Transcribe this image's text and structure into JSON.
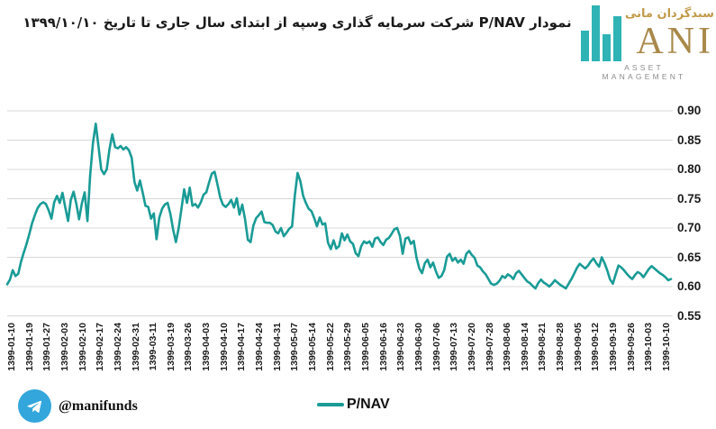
{
  "title": "نمودار P/NAV شرکت سرمایه گذاری وسپه از ابتدای سال جاری تا تاریخ ۱۳۹۹/۱۰/۱۰",
  "logo": {
    "persian_name": "سبدگردان مانی",
    "latin_name": "ANI",
    "subtitle": "ASSET MANAGEMENT"
  },
  "footer": {
    "telegram_handle": "@manifunds"
  },
  "legend": {
    "label": "P/NAV"
  },
  "colors": {
    "line": "#1a9b96",
    "grid": "#d8d8d8",
    "logo_teal": "#2fb3b5",
    "logo_gold": "#a9894a",
    "telegram_blue": "#33a6dc",
    "text": "#1a1a1a"
  },
  "chart_data": {
    "type": "line",
    "title": "P/NAV of Vasapeh investment company from start of current year to 1399/10/10",
    "series_name": "P/NAV",
    "ylim": [
      0.55,
      0.9
    ],
    "y_ticks": [
      "0.90",
      "0.85",
      "0.80",
      "0.75",
      "0.70",
      "0.65",
      "0.60",
      "0.55"
    ],
    "grid": true,
    "legend_position": "bottom",
    "categories": [
      "1399-01-10",
      "1399-01-19",
      "1399-01-27",
      "1399-02-03",
      "1399-02-10",
      "1399-02-17",
      "1399-02-24",
      "1399-02-31",
      "1399-03-11",
      "1399-03-19",
      "1399-03-26",
      "1399-04-03",
      "1399-04-10",
      "1399-04-17",
      "1399-04-24",
      "1399-04-31",
      "1399-05-07",
      "1399-05-14",
      "1399-05-22",
      "1399-05-29",
      "1399-06-05",
      "1399-06-16",
      "1399-06-23",
      "1399-06-30",
      "1399-07-06",
      "1399-07-13",
      "1399-07-20",
      "1399-07-28",
      "1399-08-06",
      "1399-08-14",
      "1399-08-21",
      "1399-08-28",
      "1399-09-05",
      "1399-09-12",
      "1399-09-19",
      "1399-09-26",
      "1399-10-03",
      "1399-10-10"
    ],
    "values": [
      0.604,
      0.612,
      0.628,
      0.618,
      0.622,
      0.643,
      0.658,
      0.673,
      0.69,
      0.708,
      0.722,
      0.734,
      0.741,
      0.744,
      0.741,
      0.73,
      0.716,
      0.744,
      0.755,
      0.743,
      0.76,
      0.735,
      0.712,
      0.748,
      0.762,
      0.741,
      0.715,
      0.742,
      0.761,
      0.712,
      0.79,
      0.845,
      0.878,
      0.84,
      0.8,
      0.792,
      0.8,
      0.835,
      0.86,
      0.838,
      0.836,
      0.84,
      0.834,
      0.838,
      0.833,
      0.82,
      0.779,
      0.764,
      0.781,
      0.76,
      0.738,
      0.736,
      0.716,
      0.725,
      0.681,
      0.718,
      0.733,
      0.74,
      0.743,
      0.724,
      0.697,
      0.676,
      0.7,
      0.733,
      0.766,
      0.743,
      0.769,
      0.738,
      0.741,
      0.735,
      0.744,
      0.757,
      0.761,
      0.778,
      0.793,
      0.796,
      0.775,
      0.752,
      0.74,
      0.736,
      0.741,
      0.748,
      0.735,
      0.751,
      0.723,
      0.74,
      0.715,
      0.68,
      0.676,
      0.704,
      0.717,
      0.722,
      0.728,
      0.71,
      0.709,
      0.709,
      0.705,
      0.694,
      0.691,
      0.7,
      0.686,
      0.692,
      0.699,
      0.703,
      0.756,
      0.794,
      0.78,
      0.755,
      0.743,
      0.733,
      0.729,
      0.717,
      0.703,
      0.718,
      0.706,
      0.708,
      0.675,
      0.664,
      0.679,
      0.665,
      0.669,
      0.691,
      0.679,
      0.689,
      0.677,
      0.673,
      0.657,
      0.652,
      0.669,
      0.677,
      0.674,
      0.677,
      0.668,
      0.682,
      0.684,
      0.676,
      0.671,
      0.68,
      0.683,
      0.69,
      0.698,
      0.7,
      0.686,
      0.656,
      0.682,
      0.684,
      0.673,
      0.678,
      0.649,
      0.631,
      0.623,
      0.64,
      0.646,
      0.633,
      0.641,
      0.626,
      0.615,
      0.618,
      0.628,
      0.651,
      0.656,
      0.644,
      0.649,
      0.641,
      0.646,
      0.639,
      0.656,
      0.661,
      0.654,
      0.649,
      0.636,
      0.633,
      0.626,
      0.621,
      0.613,
      0.605,
      0.603,
      0.605,
      0.61,
      0.618,
      0.615,
      0.621,
      0.618,
      0.613,
      0.623,
      0.627,
      0.621,
      0.615,
      0.609,
      0.606,
      0.601,
      0.597,
      0.606,
      0.612,
      0.607,
      0.604,
      0.6,
      0.605,
      0.611,
      0.607,
      0.603,
      0.6,
      0.597,
      0.605,
      0.613,
      0.622,
      0.632,
      0.639,
      0.635,
      0.631,
      0.636,
      0.643,
      0.648,
      0.64,
      0.634,
      0.65,
      0.64,
      0.627,
      0.612,
      0.605,
      0.621,
      0.636,
      0.633,
      0.628,
      0.622,
      0.617,
      0.613,
      0.62,
      0.625,
      0.622,
      0.616,
      0.623,
      0.63,
      0.635,
      0.631,
      0.627,
      0.623,
      0.62,
      0.616,
      0.611,
      0.613
    ]
  }
}
